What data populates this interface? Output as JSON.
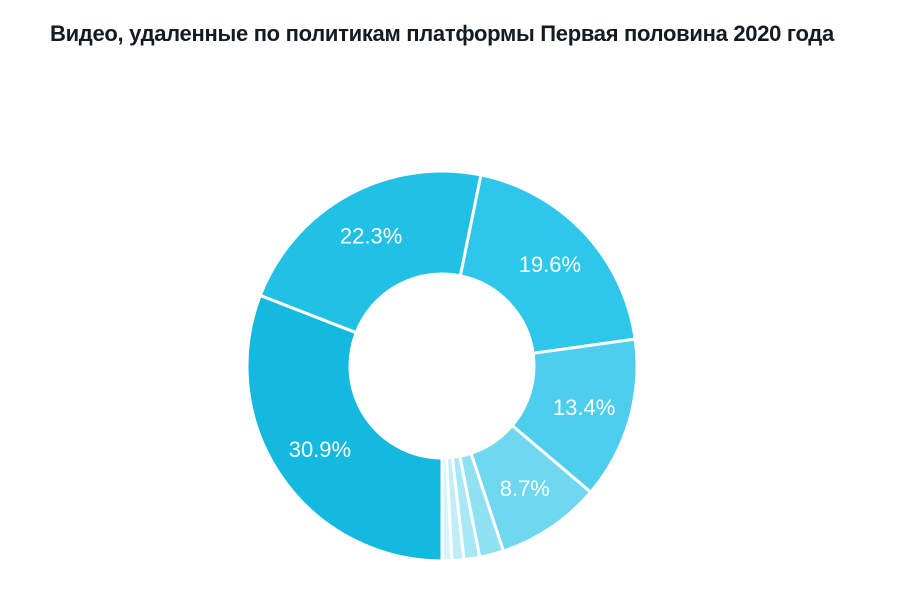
{
  "page": {
    "title": "Видео, удаленные по политикам платформы Первая половина 2020 года",
    "background_color": "#ffffff",
    "title_color": "#131b23"
  },
  "chart_data": {
    "type": "pie",
    "subtype": "donut",
    "title": "Видео, удаленные по политикам платформы Первая половина 2020 года",
    "units": "percent",
    "legend_position": "none",
    "start_angle_deg_from_top": 180,
    "direction": "clockwise",
    "sort_order": "descending",
    "inner_radius_ratio": 0.47,
    "slice_border_color": "#ffffff",
    "label_color": "#ffffff",
    "segments": [
      {
        "label": "30.9%",
        "value": 30.9,
        "color": "#13b9de",
        "labeled": true,
        "estimated": false
      },
      {
        "label": "22.3%",
        "value": 22.3,
        "color": "#21c1e5",
        "labeled": true,
        "estimated": false
      },
      {
        "label": "19.6%",
        "value": 19.6,
        "color": "#2ec7e9",
        "labeled": true,
        "estimated": false
      },
      {
        "label": "13.4%",
        "value": 13.4,
        "color": "#4dceec",
        "labeled": true,
        "estimated": false
      },
      {
        "label": "8.7%",
        "value": 8.7,
        "color": "#6fd7f0",
        "labeled": true,
        "estimated": false
      },
      {
        "label": "",
        "value": 2.0,
        "color": "#8fe0f3",
        "labeled": false,
        "estimated": true
      },
      {
        "label": "",
        "value": 1.3,
        "color": "#a8e7f6",
        "labeled": false,
        "estimated": true
      },
      {
        "label": "",
        "value": 1.0,
        "color": "#c0edf9",
        "labeled": false,
        "estimated": true
      },
      {
        "label": "",
        "value": 0.8,
        "color": "#d8f4fb",
        "labeled": false,
        "estimated": true
      }
    ]
  }
}
